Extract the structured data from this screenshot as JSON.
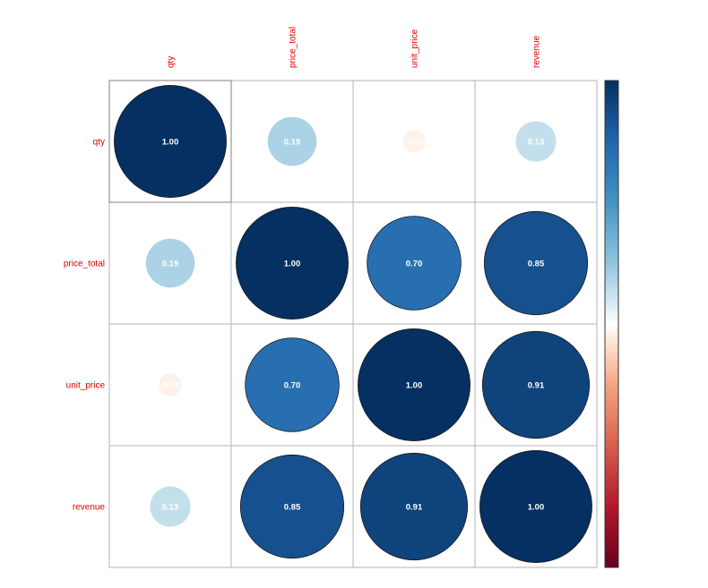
{
  "colors": {
    "label": "#e00000",
    "negative_strong": "#67001F",
    "neutral": "#FFFFFF",
    "positive_strong": "#053061",
    "circle_outline": "#1a1a1a"
  },
  "chart_data": {
    "type": "heatmap",
    "subtype": "correlation-matrix-circles",
    "variables": [
      "qty",
      "price_total",
      "unit_price",
      "revenue"
    ],
    "matrix": [
      [
        1.0,
        0.19,
        -0.04,
        0.13
      ],
      [
        0.19,
        1.0,
        0.7,
        0.85
      ],
      [
        -0.04,
        0.7,
        1.0,
        0.91
      ],
      [
        0.13,
        0.85,
        0.91,
        1.0
      ]
    ],
    "value_labels": [
      [
        "1.00",
        "0.19",
        "-0.04",
        "0.13"
      ],
      [
        "0.19",
        "1.00",
        "0.70",
        "0.85"
      ],
      [
        "-0.04",
        "0.70",
        "1.00",
        "0.91"
      ],
      [
        "0.13",
        "0.85",
        "0.91",
        "1.00"
      ]
    ],
    "color_range": [
      -1,
      1
    ],
    "colorscale": "RdBu",
    "legend_position": "right",
    "title": "",
    "xlabel": "",
    "ylabel": ""
  }
}
